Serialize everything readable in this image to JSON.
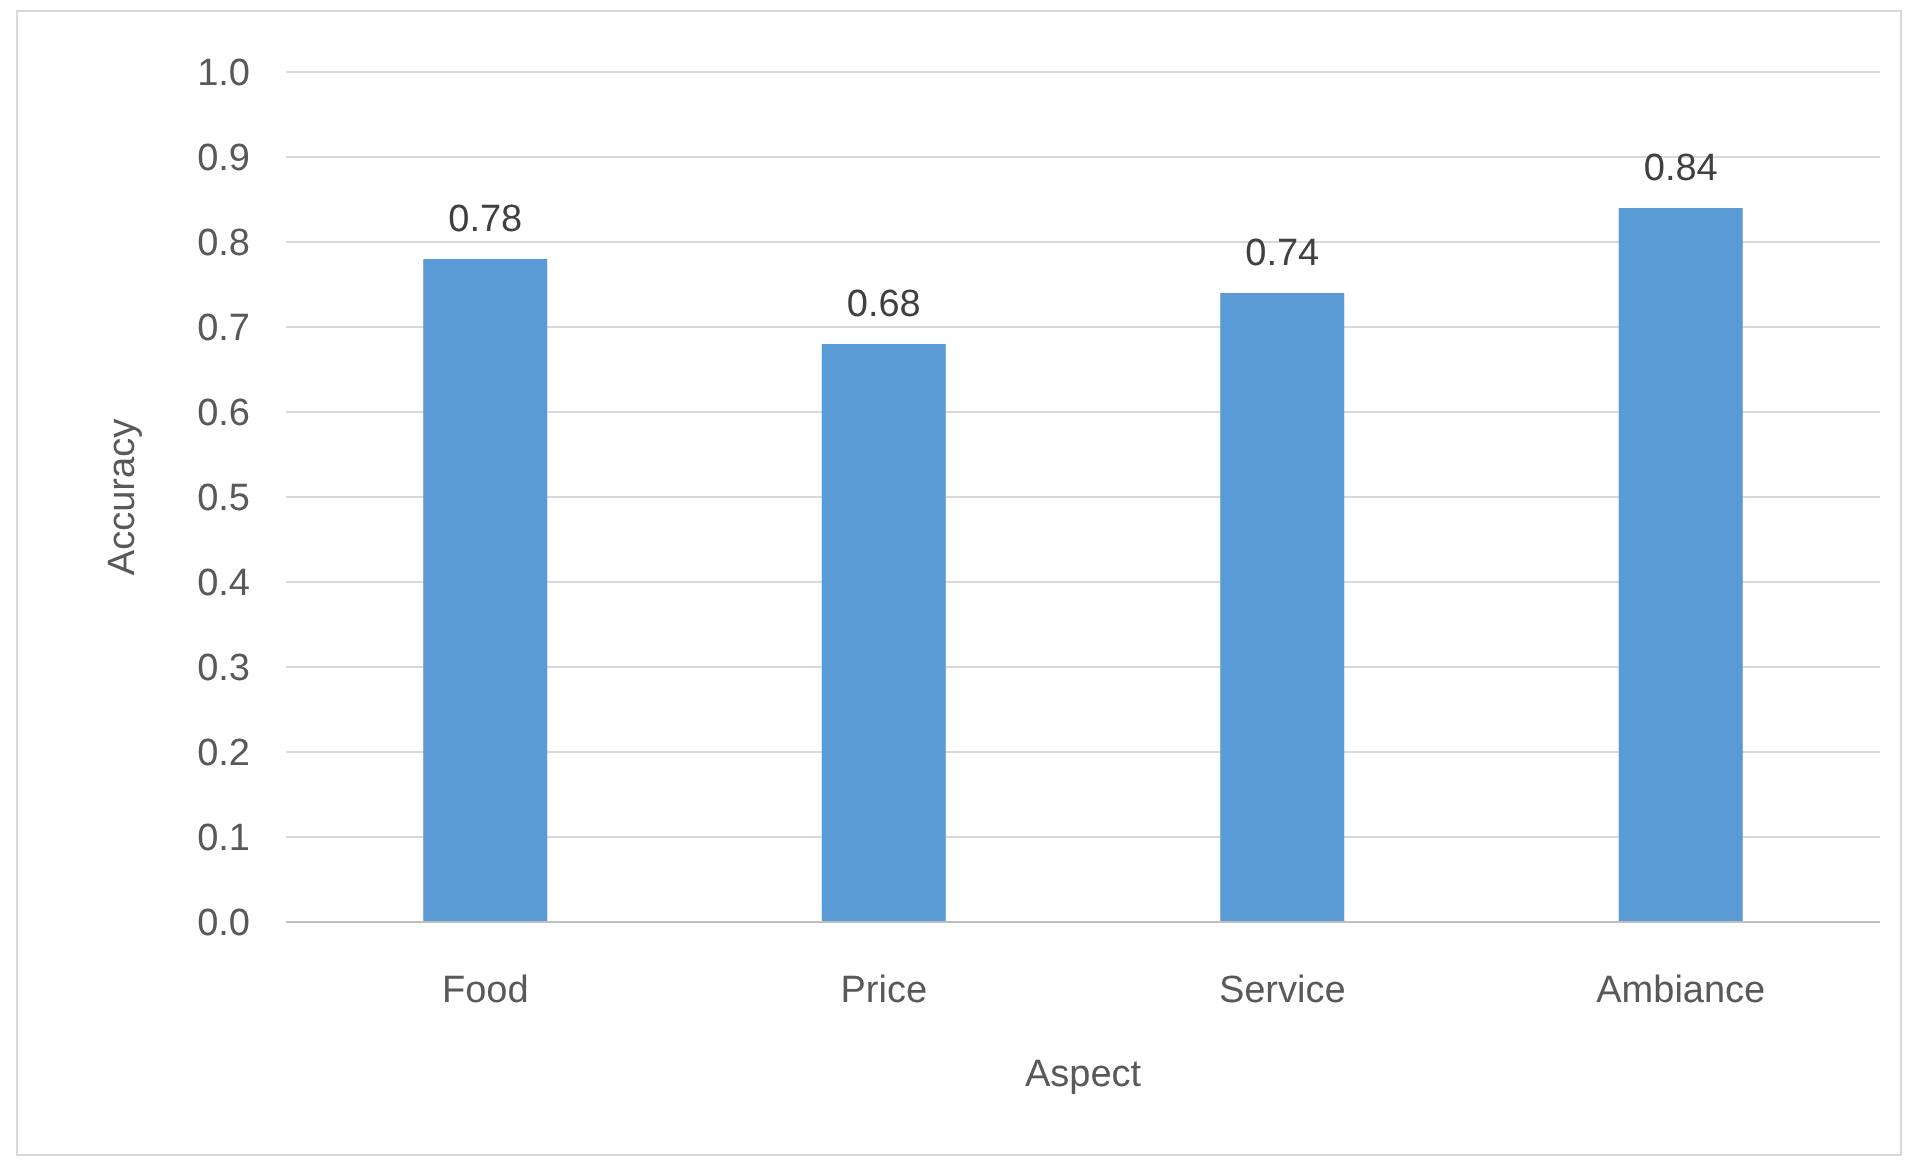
{
  "chart_data": {
    "type": "bar",
    "xlabel": "Aspect",
    "ylabel": "Accuracy",
    "categories": [
      "Food",
      "Price",
      "Service",
      "Ambiance"
    ],
    "values": [
      0.78,
      0.68,
      0.74,
      0.84
    ],
    "color": "#5b9bd5",
    "data_labels": true,
    "ylim": [
      0,
      1
    ],
    "yticks": [
      {
        "value": 0,
        "label": "0.0"
      },
      0.1,
      0.2,
      0.3,
      0.4,
      0.5,
      0.6,
      0.7,
      0.8,
      0.9,
      {
        "value": 1,
        "label": "1.0"
      }
    ],
    "grid": "y"
  }
}
